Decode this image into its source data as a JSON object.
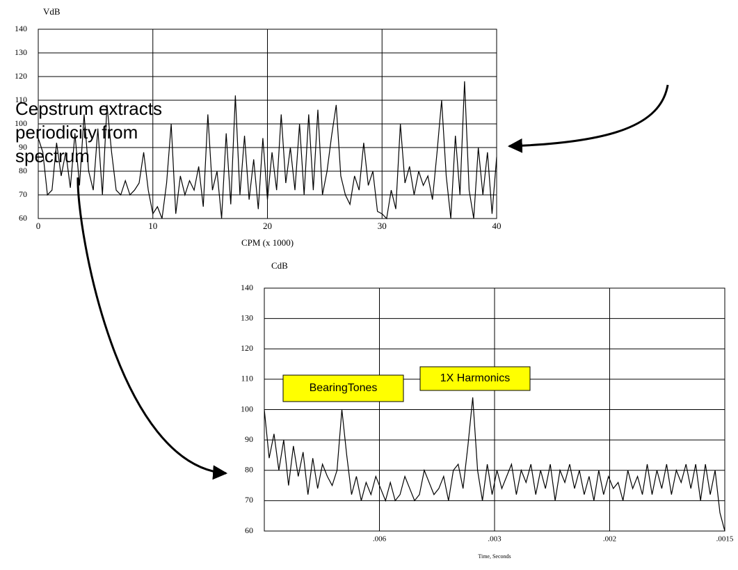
{
  "chart_data": [
    {
      "type": "line",
      "y_label": "VdB",
      "x_label": "CPM (x 1000)",
      "x": [
        0,
        0.4,
        0.8,
        1.2,
        1.6,
        2.0,
        2.4,
        2.8,
        3.2,
        3.6,
        4.0,
        4.4,
        4.8,
        5.2,
        5.6,
        6.0,
        6.4,
        6.8,
        7.2,
        7.6,
        8.0,
        8.4,
        8.8,
        9.2,
        9.6,
        10.0,
        10.4,
        10.8,
        11.2,
        11.6,
        12.0,
        12.4,
        12.8,
        13.2,
        13.6,
        14.0,
        14.4,
        14.8,
        15.2,
        15.6,
        16.0,
        16.4,
        16.8,
        17.2,
        17.6,
        18.0,
        18.4,
        18.8,
        19.2,
        19.6,
        20.0,
        20.4,
        20.8,
        21.2,
        21.6,
        22.0,
        22.4,
        22.8,
        23.2,
        23.6,
        24.0,
        24.4,
        24.8,
        25.2,
        25.6,
        26.0,
        26.4,
        26.8,
        27.2,
        27.6,
        28.0,
        28.4,
        28.8,
        29.2,
        29.6,
        30.0,
        30.4,
        30.8,
        31.2,
        31.6,
        32.0,
        32.4,
        32.8,
        33.2,
        33.6,
        34.0,
        34.4,
        34.8,
        35.2,
        35.6,
        36.0,
        36.4,
        36.8,
        37.2,
        37.6,
        38.0,
        38.4,
        38.8,
        39.2,
        39.6,
        40.0
      ],
      "values": [
        94,
        88,
        70,
        72,
        92,
        78,
        88,
        73,
        96,
        74,
        104,
        80,
        72,
        98,
        70,
        108,
        88,
        72,
        70,
        76,
        70,
        72,
        75,
        88,
        72,
        62,
        65,
        60,
        75,
        100,
        62,
        78,
        70,
        76,
        72,
        82,
        65,
        104,
        72,
        80,
        60,
        96,
        66,
        112,
        70,
        95,
        68,
        85,
        64,
        94,
        68,
        88,
        72,
        104,
        75,
        90,
        72,
        100,
        70,
        104,
        72,
        106,
        70,
        80,
        95,
        108,
        78,
        70,
        66,
        78,
        72,
        92,
        74,
        80,
        63,
        62,
        60,
        72,
        64,
        100,
        75,
        82,
        70,
        80,
        74,
        78,
        68,
        88,
        110,
        78,
        60,
        95,
        70,
        118,
        72,
        60,
        90,
        70,
        88,
        62,
        86
      ],
      "color": "#000000",
      "xlim": [
        0,
        40
      ],
      "xticks": [
        0,
        10,
        20,
        30,
        40
      ],
      "ylim": [
        60,
        140
      ],
      "yticks": [
        60,
        70,
        80,
        90,
        100,
        110,
        120,
        130,
        140
      ],
      "grid": true
    },
    {
      "type": "line",
      "y_label": "CdB",
      "x_label": "Time, Seconds",
      "xtick_labels": [
        ".006",
        ".003",
        ".002",
        ".0015"
      ],
      "values": [
        100,
        84,
        92,
        80,
        90,
        75,
        88,
        78,
        86,
        72,
        84,
        74,
        82,
        78,
        75,
        80,
        100,
        85,
        72,
        78,
        70,
        76,
        72,
        78,
        74,
        70,
        76,
        70,
        72,
        78,
        74,
        70,
        72,
        80,
        76,
        72,
        74,
        78,
        70,
        80,
        82,
        74,
        88,
        104,
        80,
        70,
        82,
        72,
        80,
        74,
        78,
        82,
        72,
        80,
        76,
        82,
        72,
        80,
        74,
        82,
        70,
        80,
        76,
        82,
        74,
        80,
        72,
        78,
        70,
        80,
        72,
        78,
        74,
        76,
        70,
        80,
        74,
        78,
        72,
        82,
        72,
        80,
        74,
        82,
        72,
        80,
        76,
        82,
        74,
        82,
        70,
        82,
        72,
        80,
        66,
        60
      ],
      "color": "#000000",
      "ylim": [
        60,
        140
      ],
      "yticks": [
        60,
        70,
        80,
        90,
        100,
        110,
        120,
        130,
        140
      ],
      "grid": true,
      "annotations": [
        "BearingTones",
        "1X Harmonics"
      ]
    }
  ],
  "note_text": [
    "Cepstrum extracts",
    "periodicity from",
    "spectrum"
  ]
}
